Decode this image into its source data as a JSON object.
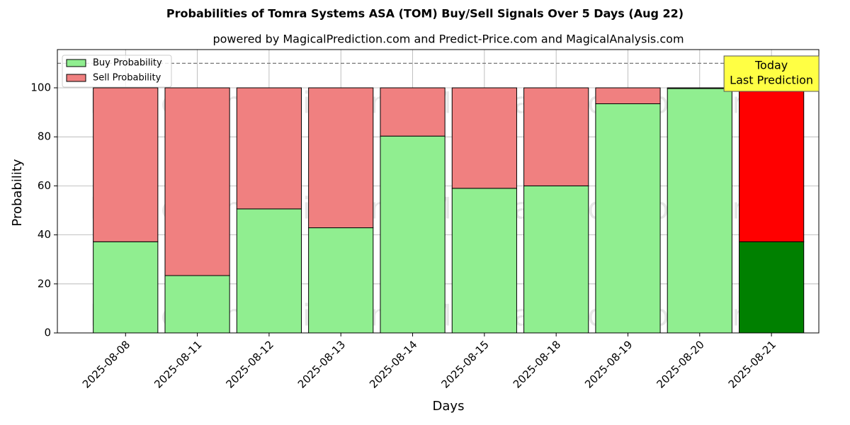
{
  "chart_data": {
    "type": "stacked_bar",
    "title": "Probabilities of Tomra Systems ASA (TOM) Buy/Sell Signals Over 5 Days (Aug 22)",
    "subtitle": "powered by MagicalPrediction.com and Predict-Price.com and MagicalAnalysis.com",
    "x_label": "Days",
    "y_label": "Probability",
    "categories": [
      "2025-08-08",
      "2025-08-11",
      "2025-08-12",
      "2025-08-13",
      "2025-08-14",
      "2025-08-15",
      "2025-08-18",
      "2025-08-19",
      "2025-08-20",
      "2025-08-21"
    ],
    "series": [
      {
        "name": "Buy Probability",
        "color": "#90ee90",
        "highlight_color": "#008000",
        "values": [
          37.2,
          23.4,
          50.6,
          42.9,
          80.3,
          59.0,
          60.0,
          93.5,
          99.7,
          37.2
        ]
      },
      {
        "name": "Sell Probability",
        "color": "#f08080",
        "highlight_color": "#ff0000",
        "values": [
          62.8,
          76.6,
          49.4,
          57.1,
          19.7,
          41.0,
          40.0,
          6.5,
          0.3,
          62.8
        ]
      }
    ],
    "ylim": [
      0,
      115.6
    ],
    "yticks": [
      0,
      20,
      40,
      60,
      80,
      100
    ],
    "grid": true,
    "legend": "upper left",
    "reference_line": 110,
    "annotation": [
      "Today",
      "Last Prediction"
    ],
    "watermarks": [
      "MagicalAnalysis.com",
      "MagicalPrediction.com",
      "MagicalAnalysis.com",
      "MagicalPrediction.com",
      "MagicalAnalysis.com",
      "MagicalPrediction.com"
    ]
  }
}
